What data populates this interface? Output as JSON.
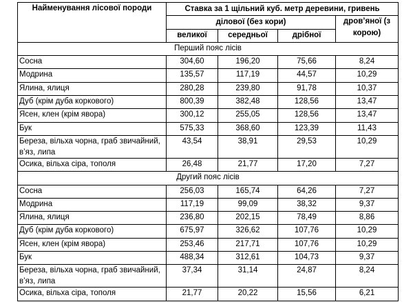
{
  "header": {
    "species": "Найменування лісової породи",
    "rate": "Ставка за 1 щільний куб. метр деревини, гривень",
    "commercial": "ділової (без кори)",
    "fuel": "дров’яної (з корою)",
    "large": "великої",
    "medium": "середньої",
    "small": "дрібної"
  },
  "sections": [
    {
      "title": "Перший пояс лісів",
      "rows": [
        {
          "name": "Сосна",
          "large": "304,60",
          "medium": "196,20",
          "small": "75,66",
          "fuel": "8,24"
        },
        {
          "name": "Модрина",
          "large": "135,57",
          "medium": "117,19",
          "small": "44,57",
          "fuel": "10,29"
        },
        {
          "name": "Ялина, ялиця",
          "large": "280,28",
          "medium": "239,80",
          "small": "91,78",
          "fuel": "10,37"
        },
        {
          "name": "Дуб (крім дуба коркового)",
          "large": "800,39",
          "medium": "382,48",
          "small": "128,56",
          "fuel": "13,47"
        },
        {
          "name": "Ясен, клен (крім явора)",
          "large": "300,12",
          "medium": "255,05",
          "small": "128,56",
          "fuel": "13,47"
        },
        {
          "name": "Бук",
          "large": "575,33",
          "medium": "368,60",
          "small": "123,39",
          "fuel": "11,43"
        },
        {
          "name": "Береза, вільха чорна, граб звичайний, в’яз, липа",
          "large": "43,54",
          "medium": "38,91",
          "small": "29,53",
          "fuel": "10,29"
        },
        {
          "name": "Осика, вільха сіра, тополя",
          "large": "26,48",
          "medium": "21,77",
          "small": "17,20",
          "fuel": "7,27"
        }
      ]
    },
    {
      "title": "Другий пояс лісів",
      "rows": [
        {
          "name": "Сосна",
          "large": "256,03",
          "medium": "165,74",
          "small": "64,26",
          "fuel": "7,27"
        },
        {
          "name": "Модрина",
          "large": "117,19",
          "medium": "99,09",
          "small": "38,32",
          "fuel": "9,37"
        },
        {
          "name": "Ялина, ялиця",
          "large": "236,80",
          "medium": "202,15",
          "small": "78,49",
          "fuel": "8,86"
        },
        {
          "name": "Дуб (крім дуба коркового)",
          "large": "675,97",
          "medium": "326,62",
          "small": "107,76",
          "fuel": "10,29"
        },
        {
          "name": "Ясен, клен (крім явора)",
          "large": "253,46",
          "medium": "217,71",
          "small": "107,76",
          "fuel": "10,29"
        },
        {
          "name": "Бук",
          "large": "488,34",
          "medium": "312,61",
          "small": "104,73",
          "fuel": "9,37"
        },
        {
          "name": "Береза, вільха чорна, граб звичайний, в’яз, липа",
          "large": "37,34",
          "medium": "31,14",
          "small": "24,87",
          "fuel": "8,24"
        },
        {
          "name": "Осика, вільха сіра, тополя",
          "large": "21,77",
          "medium": "20,22",
          "small": "15,56",
          "fuel": "6,21"
        }
      ]
    }
  ]
}
